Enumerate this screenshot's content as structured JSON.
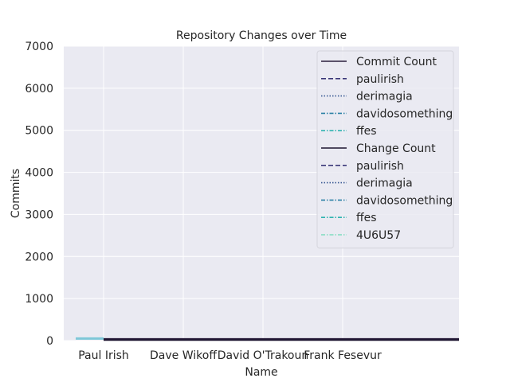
{
  "chart_data": {
    "type": "line",
    "title": "Repository Changes over Time",
    "xlabel": "Name",
    "ylabel": "Commits",
    "ylim": [
      0,
      7000
    ],
    "yticks": [
      0,
      1000,
      2000,
      3000,
      4000,
      5000,
      6000,
      7000
    ],
    "categories": [
      "Paul Irish",
      "Dave Wikoff",
      "David O'Trakoun",
      "Frank Fesevur"
    ],
    "grid": true,
    "legend_position": "top-right",
    "legend": [
      {
        "label": "Commit Count",
        "color": "#2a1e3c",
        "dash": "solid"
      },
      {
        "label": "paulirish",
        "color": "#3a3778",
        "dash": "dashed"
      },
      {
        "label": "derimagia",
        "color": "#3a5a94",
        "dash": "dotted"
      },
      {
        "label": "davidosomething",
        "color": "#2e82a6",
        "dash": "dashdot"
      },
      {
        "label": "ffes",
        "color": "#2fb3b0",
        "dash": "dashdot"
      },
      {
        "label": "Change Count",
        "color": "#1d1530",
        "dash": "solid"
      },
      {
        "label": "paulirish",
        "color": "#3a3778",
        "dash": "dashed"
      },
      {
        "label": "derimagia",
        "color": "#3a5a94",
        "dash": "dotted"
      },
      {
        "label": "davidosomething",
        "color": "#2e82a6",
        "dash": "dashdot"
      },
      {
        "label": "ffes",
        "color": "#2fb3b0",
        "dash": "dashdot"
      },
      {
        "label": "4U6U57",
        "color": "#7fdcc0",
        "dash": "dashdot"
      }
    ],
    "series": [
      {
        "name": "Commit Count",
        "color": "#2a1e3c",
        "x": [
          0,
          4.5
        ],
        "values": [
          40,
          40
        ]
      },
      {
        "name": "Change Count",
        "color": "#1d1530",
        "x": [
          0,
          4.5
        ],
        "values": [
          15,
          15
        ]
      },
      {
        "name": "paulirish",
        "color": "#7fc8d8",
        "x": [
          -0.35,
          0
        ],
        "values": [
          50,
          50
        ]
      }
    ]
  }
}
